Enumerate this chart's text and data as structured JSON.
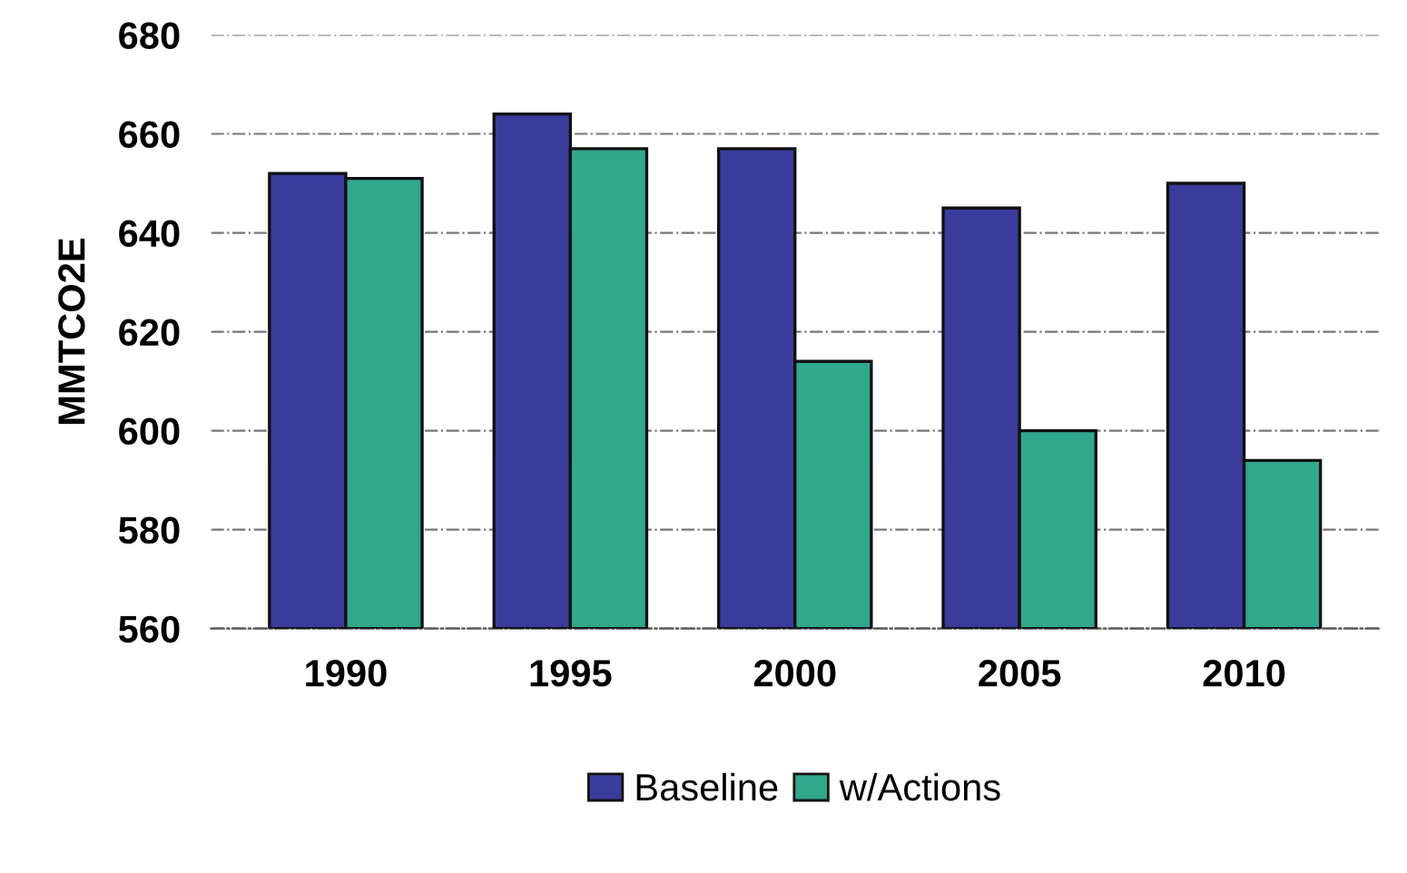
{
  "chart_data": {
    "type": "bar",
    "ylabel": "MMTCO2E",
    "categories": [
      "1990",
      "1995",
      "2000",
      "2005",
      "2010"
    ],
    "series": [
      {
        "name": "Baseline",
        "color": "#3b3b9c",
        "values": [
          652,
          664,
          657,
          645,
          650
        ]
      },
      {
        "name": "w/Actions",
        "color": "#2fa88c",
        "values": [
          651,
          657,
          614,
          600,
          594
        ]
      }
    ],
    "ylim": [
      560,
      680
    ],
    "yticks": [
      560,
      580,
      600,
      620,
      640,
      660,
      680
    ],
    "grid": "y",
    "legend": "bottom"
  }
}
